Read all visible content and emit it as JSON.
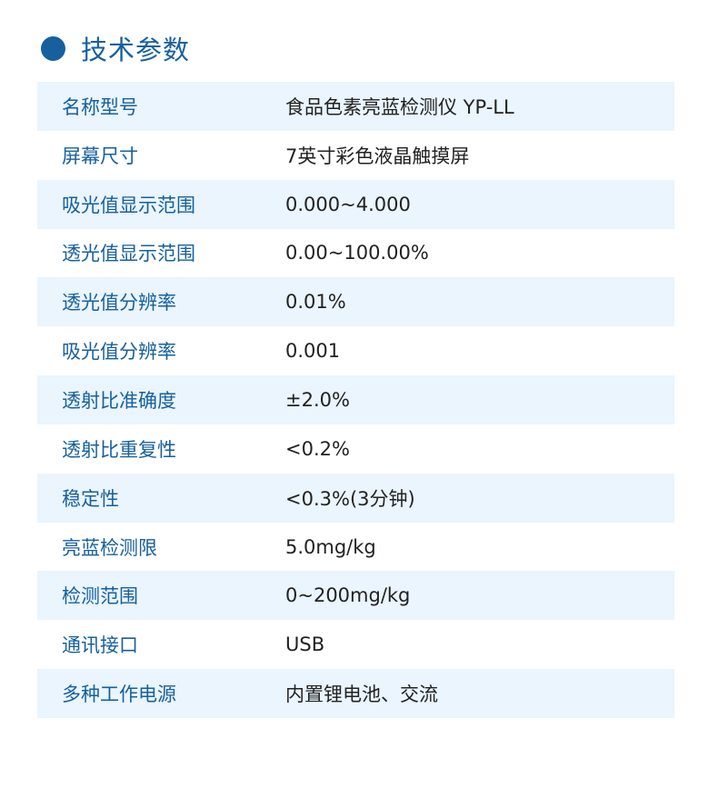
{
  "header": {
    "title": "技术参数",
    "accent": "#17609e"
  },
  "rows": [
    {
      "label": "名称型号",
      "value": "食品色素亮蓝检测仪   YP-LL"
    },
    {
      "label": "屏幕尺寸",
      "value": "7英寸彩色液晶触摸屏"
    },
    {
      "label": "吸光值显示范围",
      "value": "0.000~4.000"
    },
    {
      "label": "透光值显示范围",
      "value": "0.00~100.00%"
    },
    {
      "label": "透光值分辨率",
      "value": "0.01%"
    },
    {
      "label": "吸光值分辨率",
      "value": "0.001"
    },
    {
      "label": "透射比准确度",
      "value": "±2.0%"
    },
    {
      "label": "透射比重复性",
      "value": "<0.2%"
    },
    {
      "label": "稳定性",
      "value": "<0.3%(3分钟)"
    },
    {
      "label": "亮蓝检测限",
      "value": "5.0mg/kg"
    },
    {
      "label": "检测范围",
      "value": "0~200mg/kg"
    },
    {
      "label": "通讯接口",
      "value": "USB"
    },
    {
      "label": "多种工作电源",
      "value": "内置锂电池、交流"
    }
  ]
}
